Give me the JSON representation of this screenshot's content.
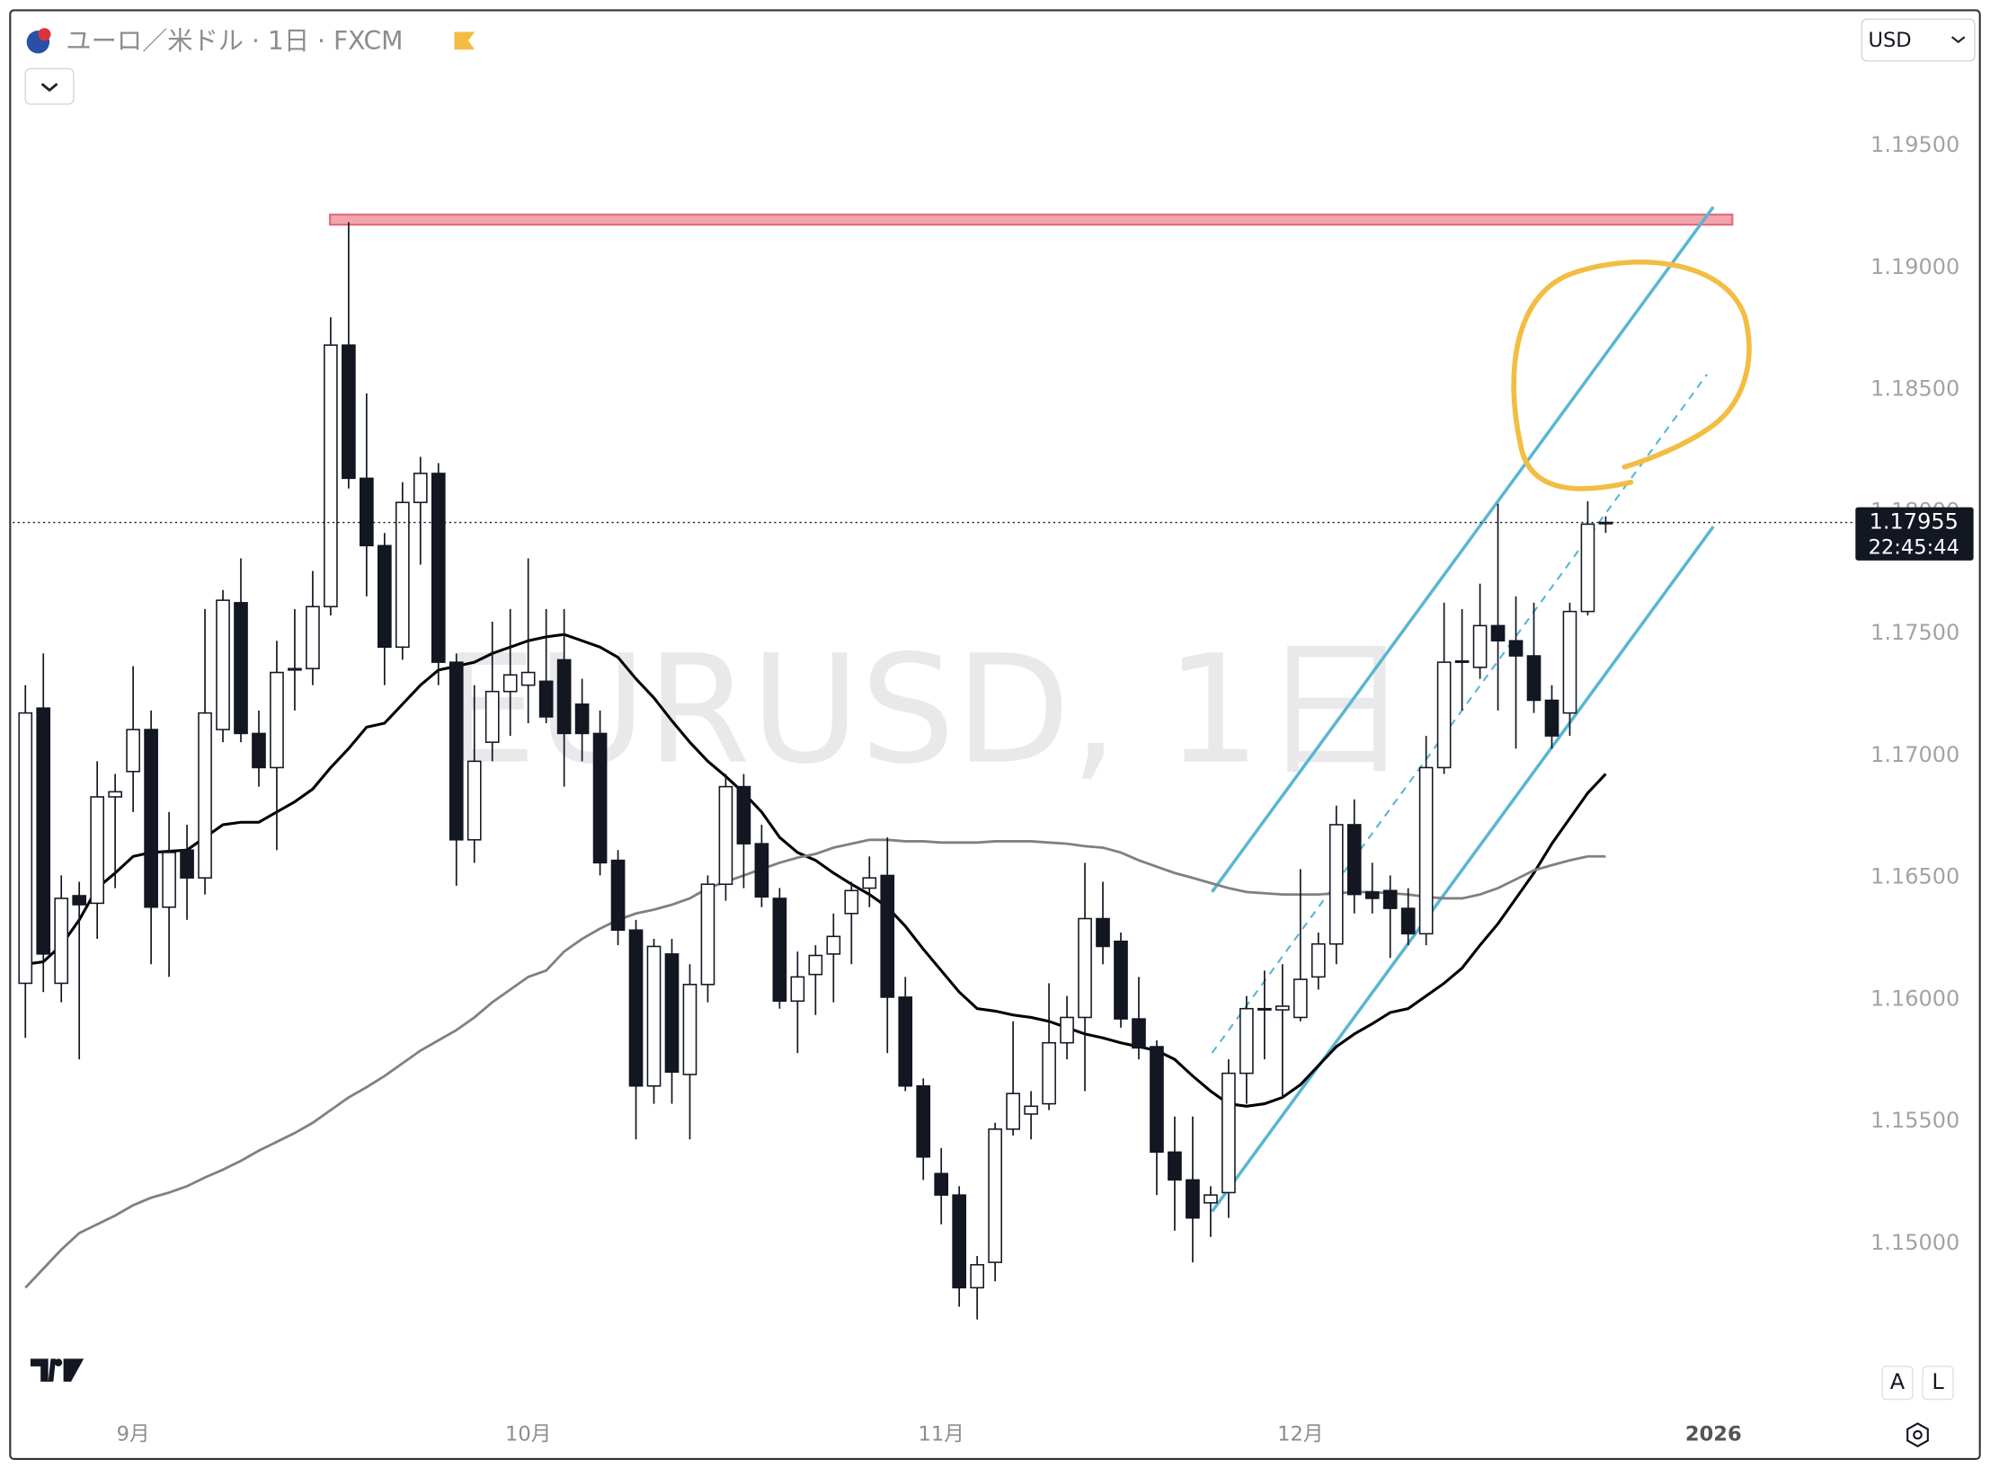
{
  "chart_data": {
    "type": "candlestick",
    "title": "ユーロ／米ドル · 1日 · FXCM",
    "currency": "USD",
    "watermark": "EURUSD, 1日",
    "buttons": [
      "A",
      "L"
    ],
    "up_color": "#ffffff",
    "down_color": "#131722",
    "open": [
      1.16066,
      1.17194,
      1.16066,
      1.16425,
      1.16394,
      1.1683,
      1.16934,
      1.17106,
      1.16378,
      1.16612,
      1.16498,
      1.17106,
      1.17626,
      1.1709,
      1.1695,
      1.1735,
      1.17356,
      1.1761,
      1.18682,
      1.18136,
      1.1786,
      1.17444,
      1.18037,
      1.18156,
      1.17382,
      1.16654,
      1.17054,
      1.17262,
      1.17288,
      1.17304,
      1.17392,
      1.1721,
      1.1709,
      1.1657,
      1.16284,
      1.15645,
      1.16186,
      1.15692,
      1.16061,
      1.16472,
      1.16872,
      1.16638,
      1.16414,
      1.15993,
      1.16102,
      1.16186,
      1.16352,
      1.16456,
      1.16508,
      1.16009,
      1.15645,
      1.15286,
      1.15198,
      1.14818,
      1.14922,
      1.15468,
      1.1553,
      1.15572,
      1.15822,
      1.15926,
      1.16331,
      1.16238,
      1.1592,
      1.15806,
      1.15374,
      1.1526,
      1.15166,
      1.15208,
      1.15697,
      1.15957,
      1.15957,
      1.15926,
      1.16092,
      1.16227,
      1.16716,
      1.1644,
      1.16446,
      1.16373,
      1.16269,
      1.1695,
      1.17382,
      1.17361,
      1.17532,
      1.1747,
      1.17408,
      1.17226,
      1.17174,
      1.1759,
      1.17954
    ],
    "high": [
      1.17288,
      1.17418,
      1.16508,
      1.16482,
      1.16976,
      1.16924,
      1.17366,
      1.17184,
      1.16768,
      1.16716,
      1.176,
      1.17678,
      1.17808,
      1.17184,
      1.1747,
      1.176,
      1.17756,
      1.18796,
      1.19186,
      1.18484,
      1.17912,
      1.1812,
      1.18224,
      1.18198,
      1.17418,
      1.17288,
      1.17548,
      1.176,
      1.17808,
      1.176,
      1.176,
      1.17314,
      1.17184,
      1.16612,
      1.16326,
      1.16248,
      1.16248,
      1.16144,
      1.16508,
      1.16924,
      1.16924,
      1.16716,
      1.16456,
      1.16196,
      1.16222,
      1.16352,
      1.16482,
      1.16586,
      1.16664,
      1.16092,
      1.15676,
      1.1539,
      1.15234,
      1.14948,
      1.15494,
      1.1591,
      1.15624,
      1.16066,
      1.16014,
      1.1656,
      1.16482,
      1.16274,
      1.16092,
      1.15832,
      1.1552,
      1.1552,
      1.15234,
      1.15754,
      1.16014,
      1.16118,
      1.16144,
      1.16534,
      1.16274,
      1.16794,
      1.1682,
      1.1656,
      1.16508,
      1.16456,
      1.1708,
      1.17626,
      1.176,
      1.17704,
      1.18032,
      1.17652,
      1.17626,
      1.17288,
      1.17626,
      1.18042,
      1.1798
    ],
    "low": [
      1.15842,
      1.1603,
      1.15988,
      1.15754,
      1.16248,
      1.16456,
      1.16768,
      1.16144,
      1.16092,
      1.16326,
      1.1643,
      1.17054,
      1.17054,
      1.16872,
      1.16612,
      1.17184,
      1.17288,
      1.17574,
      1.18094,
      1.17652,
      1.17288,
      1.17392,
      1.17782,
      1.17288,
      1.16466,
      1.1656,
      1.16976,
      1.1708,
      1.17132,
      1.17132,
      1.16872,
      1.16976,
      1.16508,
      1.16222,
      1.15426,
      1.15572,
      1.15572,
      1.15426,
      1.15988,
      1.16404,
      1.16456,
      1.16378,
      1.15962,
      1.1578,
      1.15936,
      1.15988,
      1.16144,
      1.16378,
      1.1578,
      1.15624,
      1.1526,
      1.15078,
      1.1474,
      1.14688,
      1.14844,
      1.15442,
      1.15426,
      1.15546,
      1.15754,
      1.15624,
      1.16144,
      1.15884,
      1.15754,
      1.15198,
      1.15052,
      1.14922,
      1.15026,
      1.15104,
      1.15572,
      1.15754,
      1.15598,
      1.1591,
      1.1604,
      1.16144,
      1.16352,
      1.16352,
      1.1617,
      1.16222,
      1.16222,
      1.16924,
      1.17184,
      1.17314,
      1.17184,
      1.17028,
      1.17174,
      1.17028,
      1.1708,
      1.17574,
      1.17912
    ],
    "close": [
      1.17174,
      1.16186,
      1.16414,
      1.16388,
      1.1683,
      1.16851,
      1.17106,
      1.16378,
      1.16602,
      1.16498,
      1.17174,
      1.17636,
      1.1709,
      1.1695,
      1.1734,
      1.17356,
      1.1761,
      1.18682,
      1.18136,
      1.1786,
      1.17444,
      1.18037,
      1.18156,
      1.17382,
      1.16654,
      1.16976,
      1.17262,
      1.1733,
      1.1734,
      1.17158,
      1.1709,
      1.1709,
      1.1656,
      1.16284,
      1.15645,
      1.16217,
      1.15702,
      1.16061,
      1.16472,
      1.16872,
      1.16638,
      1.1642,
      1.15993,
      1.16092,
      1.1618,
      1.16258,
      1.16446,
      1.16498,
      1.16009,
      1.15645,
      1.15354,
      1.15198,
      1.14818,
      1.14912,
      1.15468,
      1.15614,
      1.15562,
      1.15822,
      1.15926,
      1.16331,
      1.16217,
      1.1592,
      1.15801,
      1.15374,
      1.1526,
      1.15104,
      1.15198,
      1.15697,
      1.15962,
      1.15962,
      1.15972,
      1.16082,
      1.16227,
      1.16716,
      1.1643,
      1.16414,
      1.16373,
      1.16269,
      1.1695,
      1.17382,
      1.17387,
      1.17532,
      1.1747,
      1.17408,
      1.17226,
      1.1708,
      1.1759,
      1.17948,
      1.17955
    ],
    "moving_averages": [
      {
        "color": "#000000",
        "values": [
          1.16144,
          1.16154,
          1.16222,
          1.16326,
          1.16456,
          1.16518,
          1.16586,
          1.16602,
          1.16607,
          1.16612,
          1.16664,
          1.16716,
          1.16726,
          1.16726,
          1.16768,
          1.1681,
          1.16862,
          1.1695,
          1.17028,
          1.17116,
          1.17132,
          1.1721,
          1.17288,
          1.1735,
          1.17366,
          1.17382,
          1.17418,
          1.17444,
          1.1747,
          1.17486,
          1.17496,
          1.1747,
          1.17444,
          1.17402,
          1.17314,
          1.17236,
          1.17142,
          1.17054,
          1.16976,
          1.16914,
          1.16846,
          1.16768,
          1.16664,
          1.16602,
          1.1657,
          1.16518,
          1.16472,
          1.1643,
          1.16378,
          1.163,
          1.16206,
          1.16118,
          1.1603,
          1.15962,
          1.15952,
          1.15936,
          1.15926,
          1.1591,
          1.15884,
          1.15858,
          1.15842,
          1.15822,
          1.15806,
          1.1579,
          1.15754,
          1.15686,
          1.15624,
          1.15572,
          1.15562,
          1.15572,
          1.15598,
          1.1565,
          1.15728,
          1.15806,
          1.15858,
          1.159,
          1.15946,
          1.15962,
          1.16014,
          1.16066,
          1.16128,
          1.16222,
          1.1631,
          1.16414,
          1.16518,
          1.16638,
          1.16742,
          1.16846,
          1.16924
        ]
      },
      {
        "color": "#808080",
        "values": [
          1.14818,
          1.14896,
          1.14974,
          1.15042,
          1.15078,
          1.15114,
          1.15156,
          1.15187,
          1.15208,
          1.15234,
          1.1527,
          1.15302,
          1.15338,
          1.1538,
          1.15416,
          1.15452,
          1.15494,
          1.15546,
          1.15598,
          1.1564,
          1.15686,
          1.15738,
          1.1579,
          1.15832,
          1.15874,
          1.15926,
          1.15988,
          1.1604,
          1.16092,
          1.16118,
          1.16196,
          1.16248,
          1.1629,
          1.16326,
          1.16352,
          1.16368,
          1.16388,
          1.16414,
          1.16456,
          1.16482,
          1.16508,
          1.16534,
          1.1656,
          1.16581,
          1.16596,
          1.16622,
          1.16638,
          1.16654,
          1.16654,
          1.16648,
          1.16648,
          1.16643,
          1.16643,
          1.16643,
          1.16648,
          1.16648,
          1.16648,
          1.16643,
          1.16638,
          1.16628,
          1.16622,
          1.16602,
          1.1657,
          1.16544,
          1.16518,
          1.16498,
          1.16477,
          1.16456,
          1.1644,
          1.16435,
          1.1643,
          1.1643,
          1.1643,
          1.16435,
          1.1644,
          1.1644,
          1.16435,
          1.1643,
          1.1642,
          1.16414,
          1.16414,
          1.1643,
          1.16456,
          1.16492,
          1.16529,
          1.1655,
          1.1657,
          1.16586,
          1.16586
        ]
      }
    ],
    "last_price": 1.17955,
    "countdown": "22:45:44",
    "ylim": [
      1.14298,
      1.20044
    ],
    "yticks": [
      {
        "value": 1.15,
        "label": "1.15000"
      },
      {
        "value": 1.155,
        "label": "1.15500"
      },
      {
        "value": 1.16,
        "label": "1.16000"
      },
      {
        "value": 1.165,
        "label": "1.16500"
      },
      {
        "value": 1.17,
        "label": "1.17000"
      },
      {
        "value": 1.175,
        "label": "1.17500"
      },
      {
        "value": 1.18,
        "label": "1.18000"
      },
      {
        "value": 1.185,
        "label": "1.18500"
      },
      {
        "value": 1.19,
        "label": "1.19000"
      },
      {
        "value": 1.195,
        "label": "1.19500"
      }
    ],
    "xticks": [
      {
        "value": 6,
        "label": "9月"
      },
      {
        "value": 28,
        "label": "10月"
      },
      {
        "value": 51,
        "label": "11月"
      },
      {
        "value": 71,
        "label": "12月"
      },
      {
        "value": 94,
        "label": "2026"
      }
    ],
    "grid": false
  }
}
